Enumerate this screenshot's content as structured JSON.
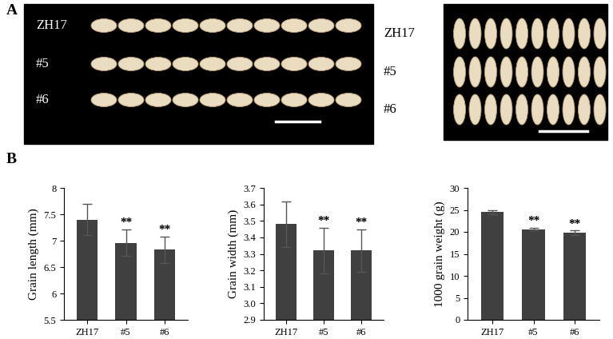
{
  "panel_labels": [
    "A",
    "B"
  ],
  "panel_a": {
    "photos": [
      {
        "rows": [
          "ZH17",
          "#5",
          "#6"
        ]
      },
      {
        "rows": [
          "ZH17",
          "#5",
          "#6"
        ]
      }
    ]
  },
  "chart_data": [
    {
      "type": "bar",
      "y_label": "Grain length (mm)",
      "categories": [
        "ZH17",
        "#5",
        "#6"
      ],
      "values": [
        7.4,
        6.96,
        6.83
      ],
      "errors": [
        0.3,
        0.25,
        0.25
      ],
      "annotations": [
        {
          "category": "#5",
          "text": "**"
        },
        {
          "category": "#6",
          "text": "**"
        }
      ],
      "color": "#404040",
      "ylim": [
        5.5,
        8
      ],
      "yticks": [
        5.5,
        6,
        6.5,
        7,
        7.5,
        8
      ]
    },
    {
      "type": "bar",
      "y_label": "Grain width (mm)",
      "categories": [
        "ZH17",
        "#5",
        "#6"
      ],
      "values": [
        3.48,
        3.32,
        3.32
      ],
      "errors": [
        0.14,
        0.14,
        0.13
      ],
      "annotations": [
        {
          "category": "#5",
          "text": "**"
        },
        {
          "category": "#6",
          "text": "**"
        }
      ],
      "color": "#404040",
      "ylim": [
        2.9,
        3.7
      ],
      "yticks": [
        2.9,
        {
          "value": 3,
          "label": "3.0"
        },
        3.1,
        3.2,
        3.3,
        3.4,
        3.5,
        3.6,
        3.7
      ]
    },
    {
      "type": "bar",
      "y_label": "1000 grain weight (g)",
      "categories": [
        "ZH17",
        "#5",
        "#6"
      ],
      "values": [
        24.5,
        20.6,
        19.8
      ],
      "errors": [
        0.5,
        0.3,
        0.5
      ],
      "annotations": [
        {
          "category": "#5",
          "text": "**"
        },
        {
          "category": "#6",
          "text": "**"
        }
      ],
      "color": "#404040",
      "ylim": [
        0,
        30
      ],
      "yticks": [
        0,
        5,
        10,
        15,
        20,
        25,
        30
      ]
    }
  ]
}
